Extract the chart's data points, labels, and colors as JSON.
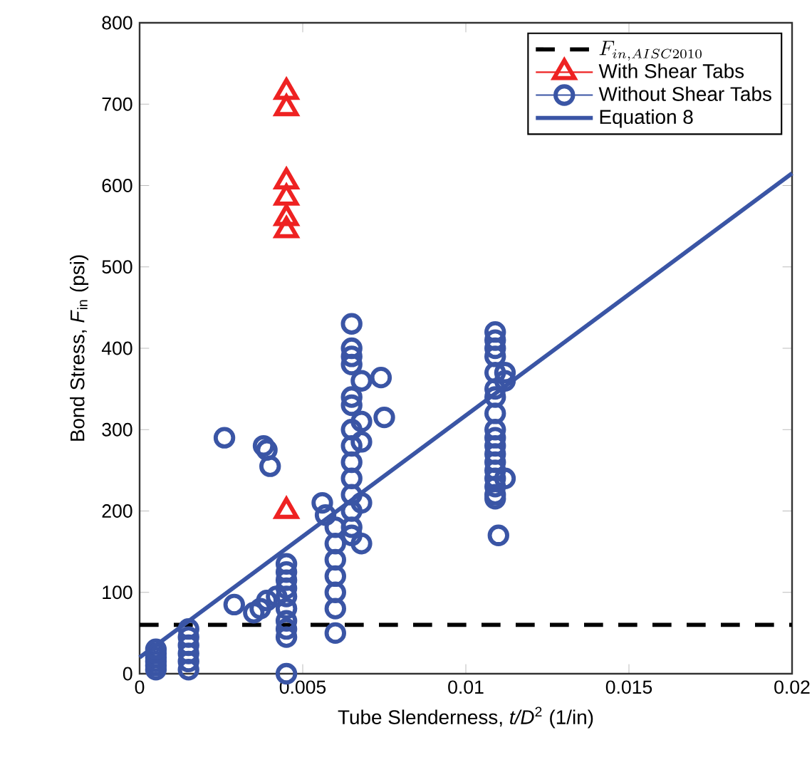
{
  "chart_data": {
    "type": "scatter",
    "xlabel": "Tube Slenderness, *t/D*$^{2}$ (1/in)",
    "ylabel": "Bond Stress, *F*$_{in}$ (psi)",
    "xlim": [
      0,
      0.02
    ],
    "ylim": [
      0,
      800
    ],
    "xticks": [
      0,
      0.005,
      0.01,
      0.015,
      0.02
    ],
    "yticks": [
      0,
      100,
      200,
      300,
      400,
      500,
      600,
      700,
      800
    ],
    "grid": false,
    "legend": "top right",
    "series": [
      {
        "name": "F_{in,AISC2010}",
        "type": "line",
        "line_style": "dashed",
        "marker": "none",
        "color": "#000000",
        "x": [
          0,
          0.02
        ],
        "values": [
          60,
          60
        ]
      },
      {
        "name": "With Shear Tabs",
        "marker": "triangle",
        "color": "#ee2222",
        "x": [
          0.0045,
          0.0045,
          0.0045,
          0.0045,
          0.0045,
          0.0045,
          0.0045
        ],
        "values": [
          715,
          695,
          605,
          585,
          560,
          545,
          200
        ]
      },
      {
        "name": "Without Shear Tabs",
        "marker": "circle",
        "color": "#3a55a5",
        "x": [
          0.0005,
          0.0005,
          0.0005,
          0.0005,
          0.0005,
          0.0005,
          0.0015,
          0.0015,
          0.0015,
          0.0015,
          0.0015,
          0.0015,
          0.0026,
          0.0029,
          0.0035,
          0.0037,
          0.0039,
          0.0042,
          0.0038,
          0.0039,
          0.004,
          0.0045,
          0.0045,
          0.0045,
          0.0045,
          0.0045,
          0.0045,
          0.0045,
          0.0045,
          0.0045,
          0.0045,
          0.0056,
          0.0057,
          0.006,
          0.006,
          0.006,
          0.006,
          0.006,
          0.006,
          0.006,
          0.0065,
          0.0065,
          0.0065,
          0.0065,
          0.0065,
          0.0065,
          0.0065,
          0.0065,
          0.0065,
          0.0065,
          0.0065,
          0.0065,
          0.0065,
          0.0065,
          0.0068,
          0.0068,
          0.0068,
          0.0068,
          0.0068,
          0.0074,
          0.0075,
          0.0109,
          0.0109,
          0.0109,
          0.0109,
          0.0109,
          0.0109,
          0.0109,
          0.0109,
          0.0109,
          0.0109,
          0.0109,
          0.0109,
          0.0109,
          0.0109,
          0.0109,
          0.0109,
          0.0109,
          0.0109,
          0.011,
          0.0112,
          0.0112,
          0.0112
        ],
        "values": [
          5,
          10,
          15,
          20,
          25,
          30,
          5,
          15,
          25,
          35,
          45,
          55,
          290,
          85,
          75,
          80,
          90,
          95,
          280,
          275,
          255,
          0,
          45,
          55,
          65,
          80,
          95,
          105,
          115,
          125,
          135,
          210,
          195,
          50,
          80,
          100,
          120,
          140,
          160,
          180,
          430,
          400,
          390,
          380,
          340,
          330,
          300,
          280,
          260,
          240,
          220,
          200,
          180,
          170,
          360,
          310,
          285,
          210,
          160,
          364,
          315,
          420,
          410,
          400,
          390,
          370,
          350,
          340,
          320,
          300,
          290,
          280,
          270,
          260,
          250,
          240,
          230,
          220,
          215,
          170,
          370,
          360,
          240
        ]
      },
      {
        "name": "Equation 8",
        "type": "line",
        "line_style": "solid",
        "marker": "none",
        "color": "#3a55a5",
        "x": [
          0,
          0.02
        ],
        "values": [
          20,
          615
        ]
      }
    ]
  }
}
